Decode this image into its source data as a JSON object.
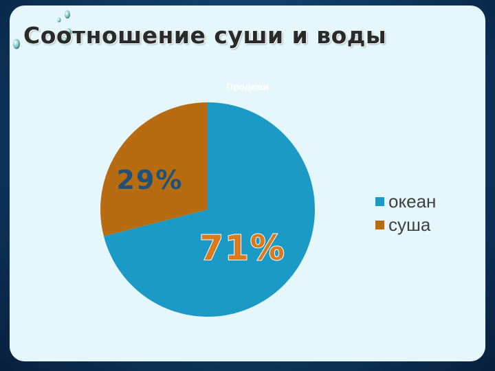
{
  "slide": {
    "title": "Соотношение суши и воды"
  },
  "chart_data": {
    "type": "pie",
    "title": "Продажи",
    "series": [
      {
        "name": "океан",
        "value": 71,
        "label": "71%",
        "color": "#1b9ac6"
      },
      {
        "name": "суша",
        "value": 29,
        "label": "29%",
        "color": "#b86c12"
      }
    ],
    "legend_position": "right",
    "start_angle_deg": 0,
    "direction": "clockwise"
  }
}
